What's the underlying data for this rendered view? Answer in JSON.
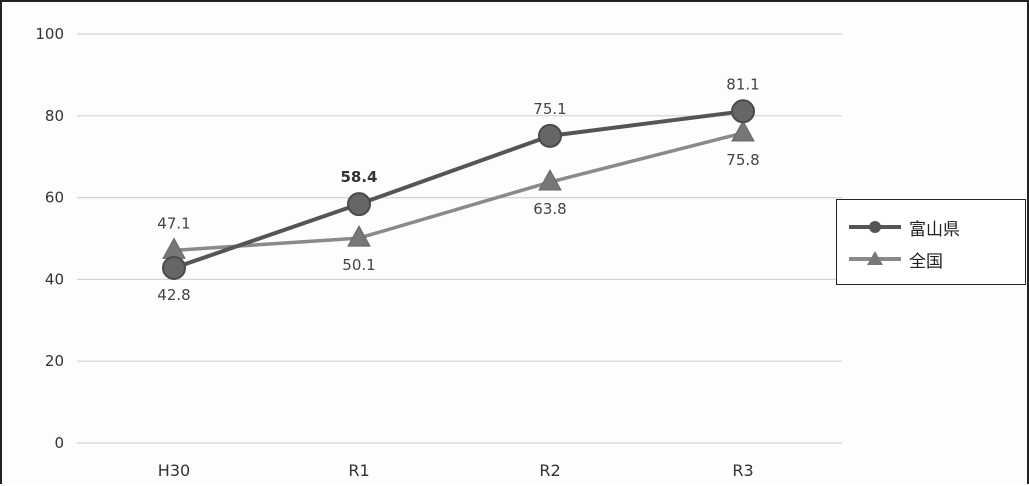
{
  "chart_data": {
    "type": "line",
    "categories": [
      "H30",
      "R1",
      "R2",
      "R3"
    ],
    "ylim": [
      0,
      100
    ],
    "yticks": [
      0,
      20,
      40,
      60,
      80,
      100
    ],
    "grid": true,
    "legend_position": "right",
    "series": [
      {
        "name": "富山県",
        "values": [
          42.8,
          58.4,
          75.1,
          81.1
        ],
        "labels": [
          "42.8",
          "58.4",
          "75.1",
          "81.1"
        ],
        "label_side": [
          "below",
          "above",
          "above",
          "above"
        ],
        "marker": "circle",
        "color": "#555555"
      },
      {
        "name": "全国",
        "values": [
          47.1,
          50.1,
          63.8,
          75.8
        ],
        "labels": [
          "47.1",
          "50.1",
          "63.8",
          "75.8"
        ],
        "label_side": [
          "above",
          "below",
          "below",
          "below"
        ],
        "marker": "triangle",
        "color": "#8a8a8a"
      }
    ]
  }
}
